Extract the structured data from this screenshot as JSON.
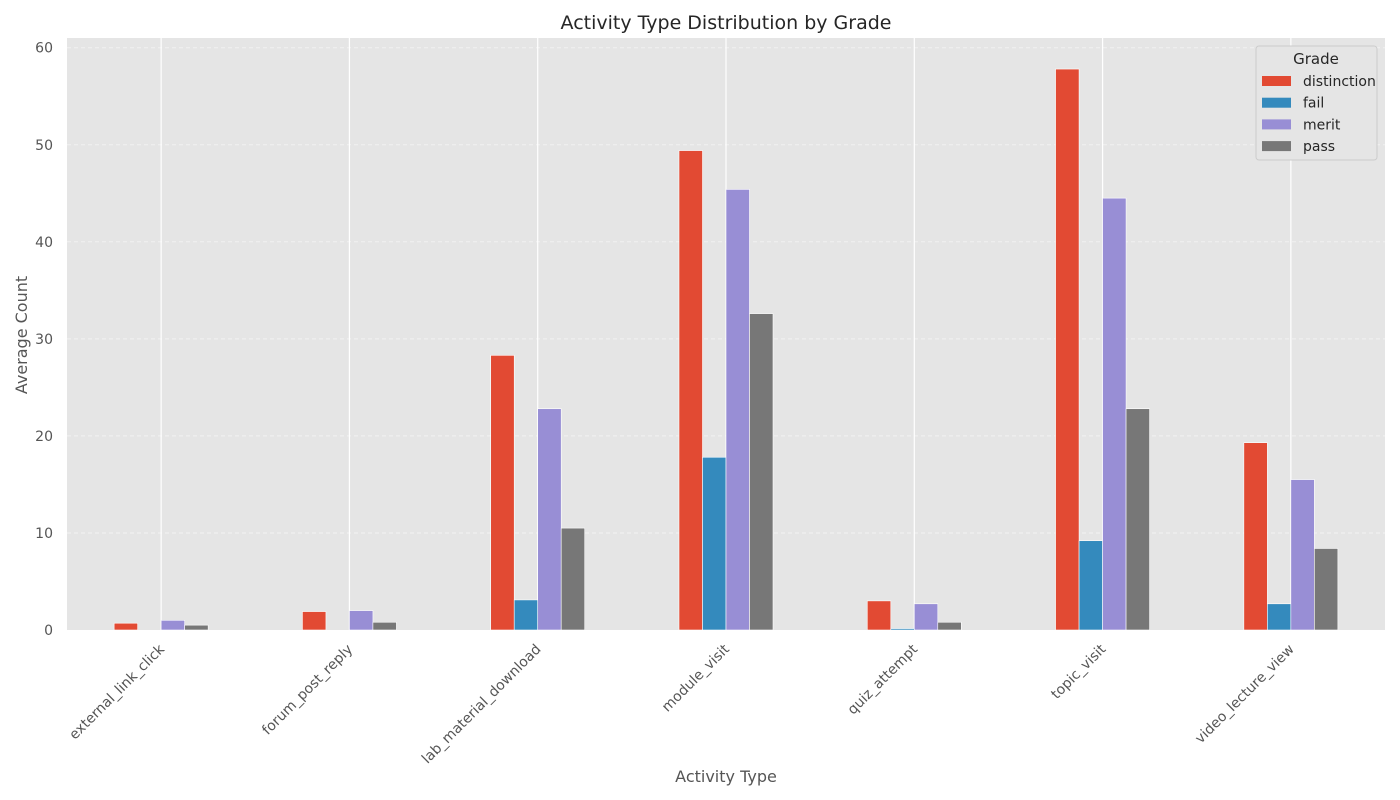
{
  "chart_data": {
    "type": "bar",
    "title": "Activity Type Distribution by Grade",
    "xlabel": "Activity Type",
    "ylabel": "Average Count",
    "ylim": [
      0,
      61
    ],
    "yticks": [
      0,
      10,
      20,
      30,
      40,
      50,
      60
    ],
    "grid": true,
    "legend_title": "Grade",
    "legend_position": "top-right",
    "categories": [
      "external_link_click",
      "forum_post_reply",
      "lab_material_download",
      "module_visit",
      "quiz_attempt",
      "topic_visit",
      "video_lecture_view"
    ],
    "series": [
      {
        "name": "distinction",
        "color": "#E24A33",
        "values": [
          0.7,
          1.9,
          28.3,
          49.4,
          3.0,
          57.8,
          19.3
        ]
      },
      {
        "name": "fail",
        "color": "#348ABD",
        "values": [
          0.0,
          0.0,
          3.1,
          17.8,
          0.15,
          9.2,
          2.7
        ]
      },
      {
        "name": "merit",
        "color": "#988ED5",
        "values": [
          1.0,
          2.0,
          22.8,
          45.4,
          2.7,
          44.5,
          15.5
        ]
      },
      {
        "name": "pass",
        "color": "#777777",
        "values": [
          0.5,
          0.8,
          10.5,
          32.6,
          0.8,
          22.8,
          8.4
        ]
      }
    ]
  }
}
